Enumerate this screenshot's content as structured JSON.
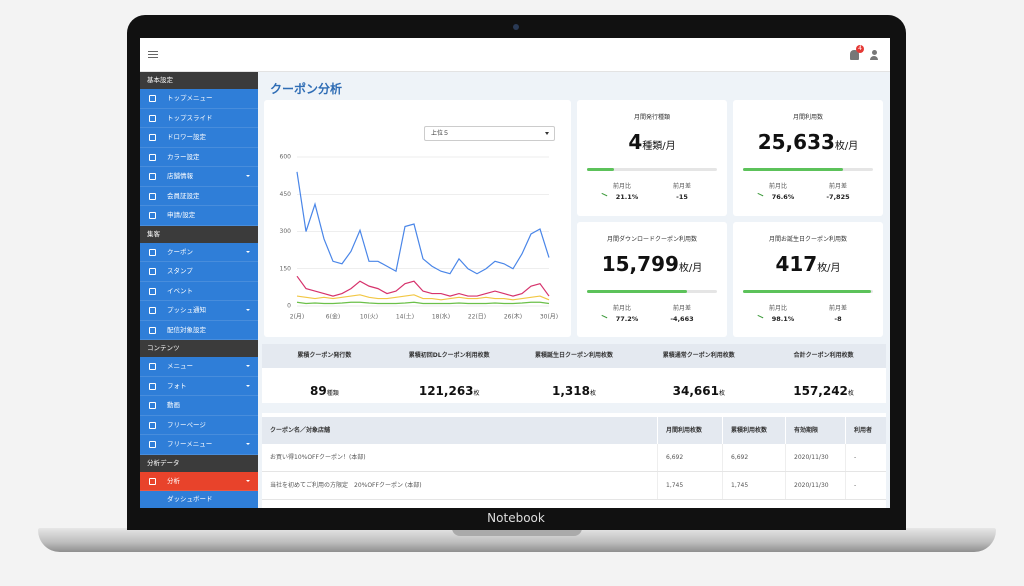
{
  "topbar": {
    "badge": "4"
  },
  "sidebar": [
    {
      "heading": "基本設定",
      "items": [
        {
          "label": "トップメニュー"
        },
        {
          "label": "トップスライド"
        },
        {
          "label": "ドロワー設定"
        },
        {
          "label": "カラー設定"
        },
        {
          "label": "店舗情報",
          "expandable": true
        },
        {
          "label": "会員証設定"
        },
        {
          "label": "申請/設定"
        }
      ]
    },
    {
      "heading": "集客",
      "items": [
        {
          "label": "クーポン",
          "expandable": true
        },
        {
          "label": "スタンプ"
        },
        {
          "label": "イベント"
        },
        {
          "label": "プッシュ通知",
          "expandable": true
        },
        {
          "label": "配信対象設定"
        }
      ]
    },
    {
      "heading": "コンテンツ",
      "items": [
        {
          "label": "メニュー",
          "expandable": true
        },
        {
          "label": "フォト",
          "expandable": true
        },
        {
          "label": "動画"
        },
        {
          "label": "フリーページ"
        },
        {
          "label": "フリーメニュー",
          "expandable": true
        }
      ]
    },
    {
      "heading": "分析データ",
      "items": [
        {
          "label": "分析",
          "expandable": true,
          "active": true,
          "children": [
            "ダッシュボード"
          ]
        }
      ]
    }
  ],
  "page_title": "クーポン分析",
  "chart_filter": "上位５",
  "chart_data": {
    "type": "line",
    "categories": [
      "2(月)",
      null,
      null,
      null,
      "6(金)",
      null,
      null,
      null,
      "10(火)",
      null,
      null,
      null,
      "14(土)",
      null,
      null,
      null,
      "18(水)",
      null,
      null,
      null,
      "22(日)",
      null,
      null,
      null,
      "26(木)",
      null,
      null,
      null,
      "30(月)"
    ],
    "series": [
      {
        "color": "#4a86e8",
        "values": [
          540,
          300,
          410,
          270,
          180,
          170,
          220,
          305,
          180,
          180,
          160,
          140,
          320,
          330,
          190,
          160,
          140,
          130,
          190,
          150,
          130,
          150,
          180,
          170,
          150,
          210,
          290,
          310,
          195
        ]
      },
      {
        "color": "#d6336c",
        "values": [
          120,
          70,
          60,
          50,
          40,
          50,
          70,
          100,
          80,
          70,
          50,
          60,
          90,
          100,
          60,
          50,
          50,
          40,
          50,
          40,
          40,
          50,
          60,
          50,
          40,
          50,
          80,
          90,
          40
        ]
      },
      {
        "color": "#f2c744",
        "values": [
          40,
          35,
          30,
          35,
          30,
          35,
          40,
          45,
          35,
          30,
          30,
          35,
          40,
          45,
          30,
          30,
          25,
          30,
          35,
          30,
          30,
          35,
          30,
          30,
          25,
          30,
          35,
          40,
          25
        ]
      },
      {
        "color": "#6cc04a",
        "values": [
          15,
          10,
          12,
          10,
          10,
          12,
          15,
          15,
          12,
          10,
          10,
          10,
          12,
          15,
          10,
          10,
          10,
          10,
          12,
          10,
          10,
          10,
          12,
          10,
          10,
          12,
          15,
          15,
          10
        ]
      }
    ],
    "ylim": [
      0,
      600
    ],
    "yticks": [
      0,
      150,
      300,
      450,
      600
    ],
    "grid": true
  },
  "cards": [
    {
      "title": "月間発行種類",
      "value": "4",
      "unit": "種類/月",
      "ratio_title": "前月比",
      "ratio": 21.1,
      "ratio_label": "21.1%",
      "diff_title": "前月差",
      "diff": "-15"
    },
    {
      "title": "月間利用数",
      "value": "25,633",
      "unit": "枚/月",
      "ratio_title": "前月比",
      "ratio": 76.6,
      "ratio_label": "76.6%",
      "diff_title": "前月差",
      "diff": "-7,825"
    },
    {
      "title": "月間ダウンロードクーポン利用数",
      "value": "15,799",
      "unit": "枚/月",
      "ratio_title": "前月比",
      "ratio": 77.2,
      "ratio_label": "77.2%",
      "diff_title": "前月差",
      "diff": "-4,663"
    },
    {
      "title": "月間お誕生日クーポン利用数",
      "value": "417",
      "unit": "枚/月",
      "ratio_title": "前月比",
      "ratio": 98.1,
      "ratio_label": "98.1%",
      "diff_title": "前月差",
      "diff": "-8"
    }
  ],
  "summary": [
    {
      "title": "累積クーポン発行数",
      "value": "89",
      "unit": "種類"
    },
    {
      "title": "累積初回DLクーポン利用枚数",
      "value": "121,263",
      "unit": "枚"
    },
    {
      "title": "累積誕生日クーポン利用枚数",
      "value": "1,318",
      "unit": "枚"
    },
    {
      "title": "累積通常クーポン利用枚数",
      "value": "34,661",
      "unit": "枚"
    },
    {
      "title": "合計クーポン利用枚数",
      "value": "157,242",
      "unit": "枚"
    }
  ],
  "table": {
    "header": [
      "クーポン名／対象店舗",
      "月間利用枚数",
      "累積利用枚数",
      "有効期限",
      "利用者"
    ],
    "rows": [
      [
        "お買い得10%OFFクーポン！(本部)",
        "6,692",
        "6,692",
        "2020/11/30",
        "-"
      ],
      [
        "当社を初めてご利用の方限定　20%OFFクーポン (本部)",
        "1,745",
        "1,745",
        "2020/11/30",
        "-"
      ]
    ]
  },
  "device_label": "Notebook"
}
